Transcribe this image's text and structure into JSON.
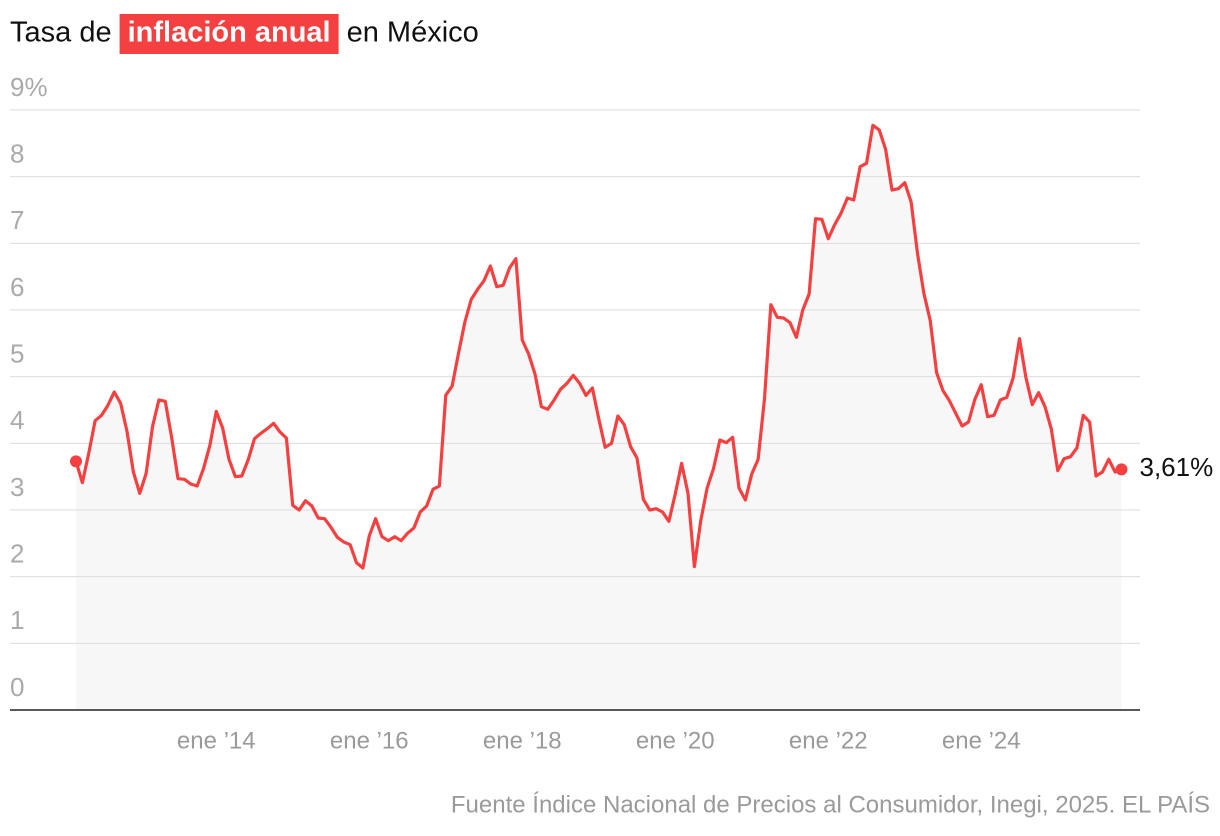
{
  "chart_data": {
    "type": "line",
    "title_parts": [
      "Tasa de",
      "inflación anual",
      "en México"
    ],
    "source": "Fuente Índice Nacional de Precios al Consumidor, Inegi, 2025. EL PAÍS",
    "color": "#f44040",
    "area_color": "#f7f7f7",
    "highlight_color": "#f44040",
    "grid": true,
    "x": [
      "2012-03",
      "2012-04",
      "2012-05",
      "2012-06",
      "2012-07",
      "2012-08",
      "2012-09",
      "2012-10",
      "2012-11",
      "2012-12",
      "2013-01",
      "2013-02",
      "2013-03",
      "2013-04",
      "2013-05",
      "2013-06",
      "2013-07",
      "2013-08",
      "2013-09",
      "2013-10",
      "2013-11",
      "2013-12",
      "2014-01",
      "2014-02",
      "2014-03",
      "2014-04",
      "2014-05",
      "2014-06",
      "2014-07",
      "2014-08",
      "2014-09",
      "2014-10",
      "2014-11",
      "2014-12",
      "2015-01",
      "2015-02",
      "2015-03",
      "2015-04",
      "2015-05",
      "2015-06",
      "2015-07",
      "2015-08",
      "2015-09",
      "2015-10",
      "2015-11",
      "2015-12",
      "2016-01",
      "2016-02",
      "2016-03",
      "2016-04",
      "2016-05",
      "2016-06",
      "2016-07",
      "2016-08",
      "2016-09",
      "2016-10",
      "2016-11",
      "2016-12",
      "2017-01",
      "2017-02",
      "2017-03",
      "2017-04",
      "2017-05",
      "2017-06",
      "2017-07",
      "2017-08",
      "2017-09",
      "2017-10",
      "2017-11",
      "2017-12",
      "2018-01",
      "2018-02",
      "2018-03",
      "2018-04",
      "2018-05",
      "2018-06",
      "2018-07",
      "2018-08",
      "2018-09",
      "2018-10",
      "2018-11",
      "2018-12",
      "2019-01",
      "2019-02",
      "2019-03",
      "2019-04",
      "2019-05",
      "2019-06",
      "2019-07",
      "2019-08",
      "2019-09",
      "2019-10",
      "2019-11",
      "2019-12",
      "2020-01",
      "2020-02",
      "2020-03",
      "2020-04",
      "2020-05",
      "2020-06",
      "2020-07",
      "2020-08",
      "2020-09",
      "2020-10",
      "2020-11",
      "2020-12",
      "2021-01",
      "2021-02",
      "2021-03",
      "2021-04",
      "2021-05",
      "2021-06",
      "2021-07",
      "2021-08",
      "2021-09",
      "2021-10",
      "2021-11",
      "2021-12",
      "2022-01",
      "2022-02",
      "2022-03",
      "2022-04",
      "2022-05",
      "2022-06",
      "2022-07",
      "2022-08",
      "2022-09",
      "2022-10",
      "2022-11",
      "2022-12",
      "2023-01",
      "2023-02",
      "2023-03",
      "2023-04",
      "2023-05",
      "2023-06",
      "2023-07",
      "2023-08",
      "2023-09",
      "2023-10",
      "2023-11",
      "2023-12",
      "2024-01",
      "2024-02",
      "2024-03",
      "2024-04",
      "2024-05",
      "2024-06",
      "2024-07",
      "2024-08",
      "2024-09",
      "2024-10",
      "2024-11",
      "2024-12",
      "2025-01",
      "2025-02",
      "2025-03",
      "2025-04",
      "2025-05",
      "2025-06",
      "2025-07",
      "2025-08",
      "2025-09",
      "2025-10",
      "2025-11"
    ],
    "values": [
      3.73,
      3.41,
      3.85,
      4.34,
      4.42,
      4.57,
      4.77,
      4.6,
      4.18,
      3.57,
      3.25,
      3.55,
      4.25,
      4.65,
      4.63,
      4.09,
      3.47,
      3.46,
      3.39,
      3.36,
      3.62,
      3.97,
      4.48,
      4.23,
      3.76,
      3.5,
      3.51,
      3.75,
      4.07,
      4.15,
      4.22,
      4.3,
      4.17,
      4.08,
      3.07,
      3.0,
      3.14,
      3.06,
      2.88,
      2.87,
      2.74,
      2.59,
      2.52,
      2.48,
      2.21,
      2.13,
      2.61,
      2.87,
      2.6,
      2.54,
      2.6,
      2.54,
      2.65,
      2.73,
      2.97,
      3.06,
      3.31,
      3.36,
      4.72,
      4.86,
      5.35,
      5.82,
      6.16,
      6.31,
      6.44,
      6.66,
      6.35,
      6.37,
      6.63,
      6.77,
      5.55,
      5.34,
      5.04,
      4.55,
      4.51,
      4.65,
      4.81,
      4.9,
      5.02,
      4.9,
      4.72,
      4.83,
      4.37,
      3.94,
      4.0,
      4.41,
      4.28,
      3.95,
      3.78,
      3.16,
      3.0,
      3.02,
      2.97,
      2.83,
      3.24,
      3.7,
      3.25,
      2.15,
      2.84,
      3.33,
      3.62,
      4.05,
      4.01,
      4.09,
      3.33,
      3.15,
      3.54,
      3.76,
      4.67,
      6.08,
      5.89,
      5.88,
      5.81,
      5.59,
      6.0,
      6.24,
      7.37,
      7.36,
      7.07,
      7.28,
      7.45,
      7.68,
      7.65,
      8.15,
      8.2,
      8.77,
      8.7,
      8.41,
      7.8,
      7.82,
      7.91,
      7.62,
      6.85,
      6.25,
      5.84,
      5.06,
      4.79,
      4.64,
      4.45,
      4.26,
      4.32,
      4.66,
      4.88,
      4.4,
      4.42,
      4.65,
      4.69,
      4.98,
      5.57,
      4.99,
      4.58,
      4.76,
      4.55,
      4.21,
      3.59,
      3.77,
      3.8,
      3.93,
      4.42,
      4.32,
      3.51,
      3.57,
      3.76,
      3.57,
      3.61
    ],
    "end_label": "3,61%",
    "ylim": [
      0,
      9
    ],
    "yticks": [
      0,
      1,
      2,
      3,
      4,
      5,
      6,
      7,
      8,
      {
        "value": 9,
        "label": "9%"
      }
    ],
    "xticks": [
      {
        "value": "2014-01",
        "label": "ene ’14"
      },
      {
        "value": "2016-01",
        "label": "ene ’16"
      },
      {
        "value": "2018-01",
        "label": "ene ’18"
      },
      {
        "value": "2020-01",
        "label": "ene ’20"
      },
      {
        "value": "2022-01",
        "label": "ene ’22"
      },
      {
        "value": "2024-01",
        "label": "ene ’24"
      }
    ]
  }
}
